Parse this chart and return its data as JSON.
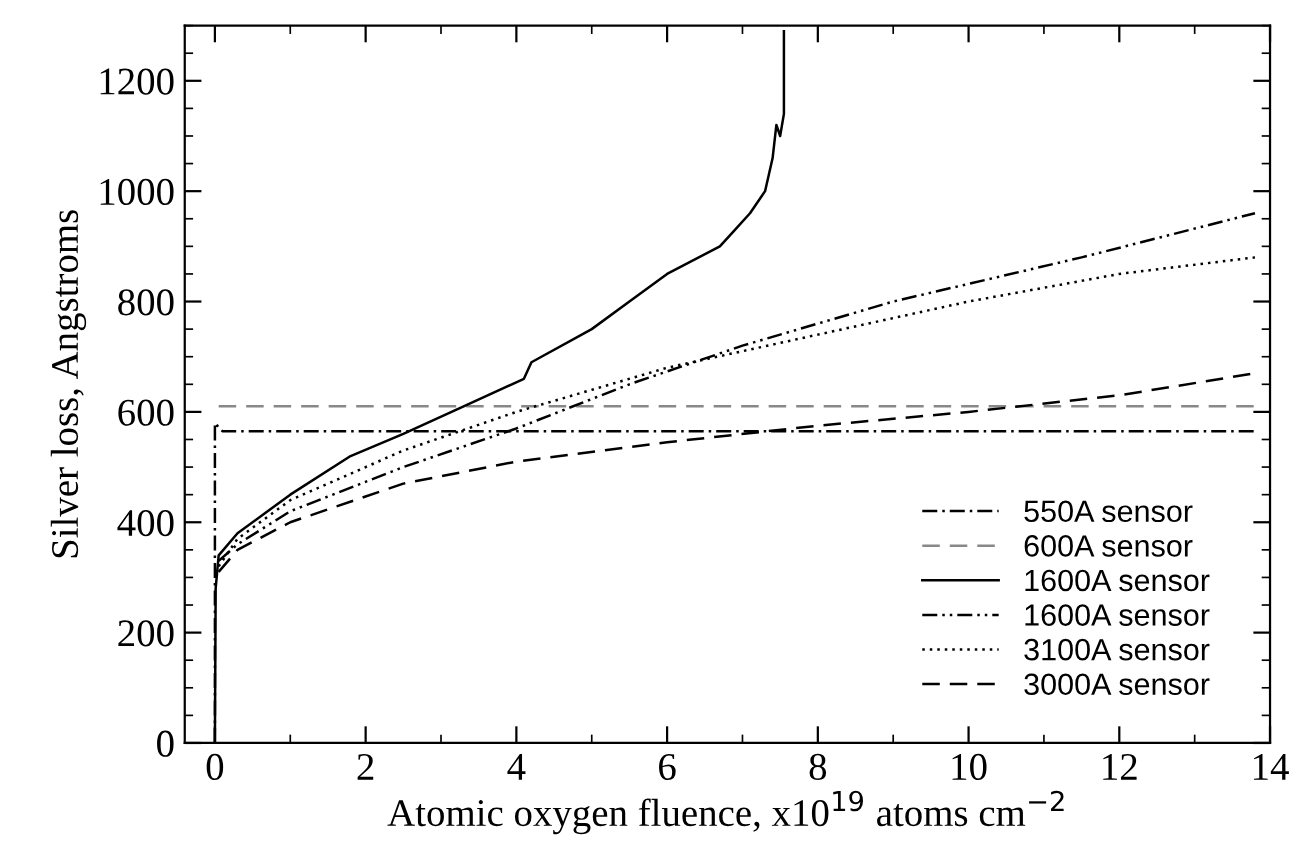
{
  "chart_data": {
    "type": "line",
    "xlabel": "Atomic oxygen fluence, x10$^{19}$ atoms cm$^{−2}$",
    "ylabel": "Silver loss, Angstroms",
    "xlim": [
      -0.4,
      14
    ],
    "ylim": [
      0,
      1300
    ],
    "xticks": [
      0,
      2,
      4,
      6,
      8,
      10,
      12,
      14
    ],
    "yticks": [
      0,
      200,
      400,
      600,
      800,
      1000,
      1200
    ],
    "grid": false,
    "legend": "bottom right",
    "marker": "none",
    "series": [
      {
        "name": "550A sensor",
        "color": "#000000",
        "line_style": "dashdot",
        "x": [
          0,
          0,
          0.1,
          13.8
        ],
        "values": [
          0,
          580,
          565,
          565
        ]
      },
      {
        "name": "600A sensor",
        "color": "#888888",
        "line_style": "dashed",
        "x": [
          0.05,
          13.8
        ],
        "values": [
          610,
          610
        ]
      },
      {
        "name": "1600A sensor",
        "color": "#000000",
        "line_style": "solid",
        "x": [
          0.0,
          0.01,
          0.05,
          0.3,
          1.0,
          1.8,
          2.5,
          3.3,
          4.1,
          4.2,
          5.0,
          5.5,
          6.0,
          6.7,
          6.9,
          7.1,
          7.3,
          7.4,
          7.45,
          7.5,
          7.55,
          7.55
        ],
        "values": [
          0,
          280,
          340,
          380,
          450,
          520,
          560,
          610,
          660,
          690,
          750,
          800,
          850,
          900,
          930,
          960,
          1000,
          1060,
          1120,
          1100,
          1140,
          1290
        ]
      },
      {
        "name": "1600A sensor",
        "color": "#000000",
        "line_style": "dashdotdot",
        "x": [
          0.05,
          0.3,
          1.0,
          2.5,
          4.0,
          5.5,
          7.0,
          9.0,
          11.5,
          13.8
        ],
        "values": [
          330,
          360,
          420,
          500,
          570,
          650,
          720,
          800,
          880,
          960
        ]
      },
      {
        "name": "3100A sensor",
        "color": "#000000",
        "line_style": "dotted",
        "x": [
          0.05,
          0.3,
          1.0,
          2.5,
          4.0,
          6.0,
          8.0,
          10.0,
          12.0,
          13.8
        ],
        "values": [
          320,
          370,
          440,
          530,
          600,
          680,
          740,
          800,
          850,
          880
        ]
      },
      {
        "name": "3000A sensor",
        "color": "#000000",
        "line_style": "dashed",
        "x": [
          0.05,
          0.3,
          1.0,
          2.5,
          4.0,
          6.0,
          8.0,
          10.0,
          12.0,
          13.8
        ],
        "values": [
          310,
          350,
          400,
          470,
          510,
          545,
          575,
          600,
          630,
          670
        ]
      }
    ]
  }
}
